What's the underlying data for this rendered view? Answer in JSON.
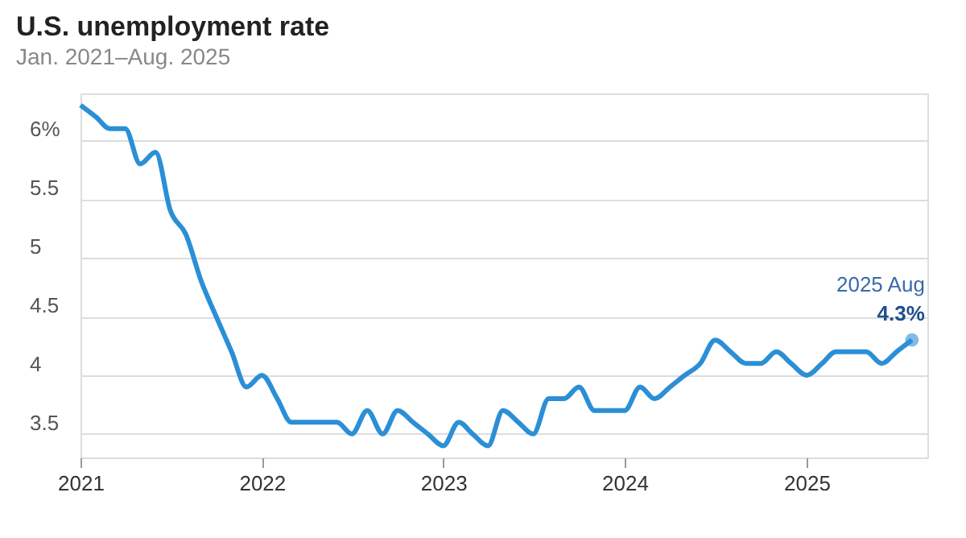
{
  "chart_data": {
    "type": "line",
    "title": "U.S. unemployment rate",
    "subtitle": "Jan. 2021–Aug. 2025",
    "x": [
      "2021-01",
      "2021-02",
      "2021-03",
      "2021-04",
      "2021-05",
      "2021-06",
      "2021-07",
      "2021-08",
      "2021-09",
      "2021-10",
      "2021-11",
      "2021-12",
      "2022-01",
      "2022-02",
      "2022-03",
      "2022-04",
      "2022-05",
      "2022-06",
      "2022-07",
      "2022-08",
      "2022-09",
      "2022-10",
      "2022-11",
      "2022-12",
      "2023-01",
      "2023-02",
      "2023-03",
      "2023-04",
      "2023-05",
      "2023-06",
      "2023-07",
      "2023-08",
      "2023-09",
      "2023-10",
      "2023-11",
      "2023-12",
      "2024-01",
      "2024-02",
      "2024-03",
      "2024-04",
      "2024-05",
      "2024-06",
      "2024-07",
      "2024-08",
      "2024-09",
      "2024-10",
      "2024-11",
      "2024-12",
      "2025-01",
      "2025-02",
      "2025-03",
      "2025-04",
      "2025-05",
      "2025-06",
      "2025-07",
      "2025-08"
    ],
    "series": [
      {
        "color": "#2b8fd6",
        "values": [
          6.3,
          6.2,
          6.1,
          6.1,
          5.8,
          5.9,
          5.4,
          5.2,
          4.8,
          4.5,
          4.2,
          3.9,
          4.0,
          3.8,
          3.6,
          3.6,
          3.6,
          3.6,
          3.5,
          3.7,
          3.5,
          3.7,
          3.6,
          3.5,
          3.4,
          3.6,
          3.5,
          3.4,
          3.7,
          3.6,
          3.5,
          3.8,
          3.8,
          3.9,
          3.7,
          3.7,
          3.7,
          3.9,
          3.8,
          3.9,
          4.0,
          4.1,
          4.3,
          4.2,
          4.1,
          4.1,
          4.2,
          4.1,
          4.0,
          4.1,
          4.2,
          4.2,
          4.2,
          4.1,
          4.2,
          4.3
        ]
      }
    ],
    "xlim": [
      "2021-01",
      "2025-09"
    ],
    "xticks": [
      "2021",
      "2022",
      "2023",
      "2024",
      "2025"
    ],
    "ylim": [
      3.3,
      6.4
    ],
    "yticks": [
      3.5,
      4,
      4.5,
      5,
      {
        "value": 6,
        "label": "6%"
      },
      5.5
    ],
    "grid": "y",
    "marker": "none",
    "line_style": "solid",
    "annotations": [
      {
        "text": "2025 Aug",
        "x": "2025-08",
        "y": 4.3
      },
      {
        "text": "4.3%",
        "x": "2025-08",
        "y": 4.3
      }
    ]
  }
}
